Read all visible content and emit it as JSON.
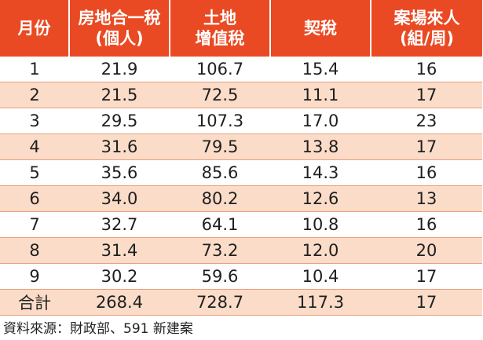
{
  "table": {
    "headers": [
      {
        "lines": [
          "月份"
        ]
      },
      {
        "lines": [
          "房地合一稅",
          "(個人)"
        ]
      },
      {
        "lines": [
          "土地",
          "增值稅"
        ]
      },
      {
        "lines": [
          "契稅"
        ]
      },
      {
        "lines": [
          "案場來人",
          "(組/周)"
        ]
      }
    ],
    "rows": [
      [
        "1",
        "21.9",
        "106.7",
        "15.4",
        "16"
      ],
      [
        "2",
        "21.5",
        "72.5",
        "11.1",
        "17"
      ],
      [
        "3",
        "29.5",
        "107.3",
        "17.0",
        "23"
      ],
      [
        "4",
        "31.6",
        "79.5",
        "13.8",
        "17"
      ],
      [
        "5",
        "35.6",
        "85.6",
        "14.3",
        "16"
      ],
      [
        "6",
        "34.0",
        "80.2",
        "12.6",
        "13"
      ],
      [
        "7",
        "32.7",
        "64.1",
        "10.8",
        "16"
      ],
      [
        "8",
        "31.4",
        "73.2",
        "12.0",
        "20"
      ],
      [
        "9",
        "30.2",
        "59.6",
        "10.4",
        "17"
      ],
      [
        "合計",
        "268.4",
        "728.7",
        "117.3",
        "17"
      ]
    ]
  },
  "source": "資料來源：財政部、591 新建案",
  "colors": {
    "header_bg": "#ea4a23",
    "header_text": "#ffffff",
    "stripe_bg": "#fbdcc8",
    "row_border": "#e9a07f"
  }
}
